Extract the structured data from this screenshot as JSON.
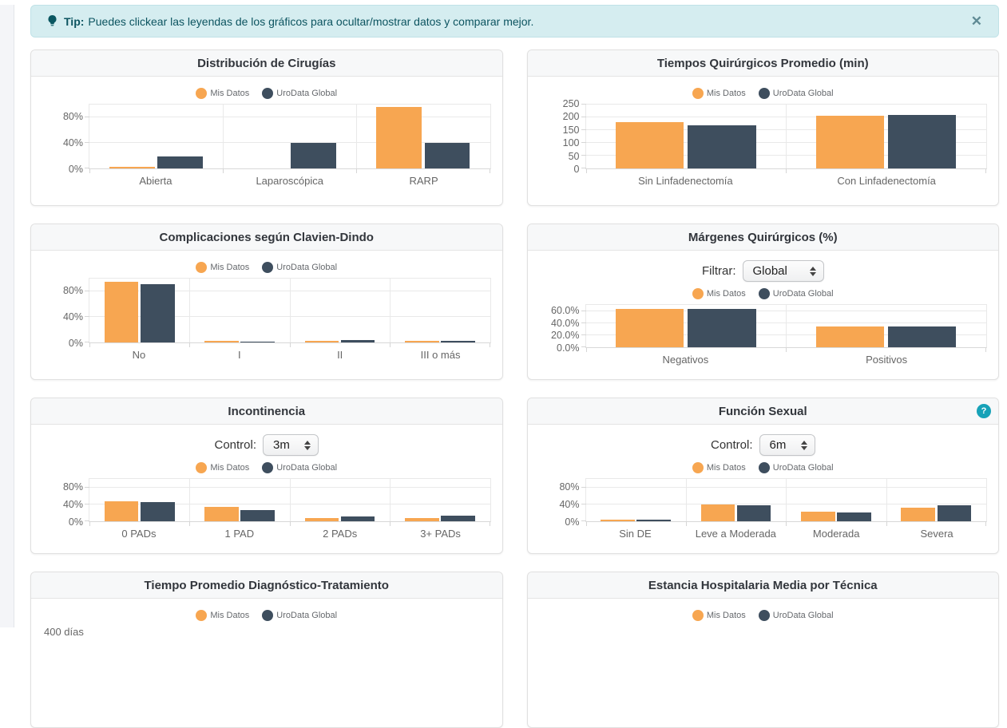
{
  "tip_banner": {
    "icon": "lightbulb-icon",
    "bold_label": "Tip:",
    "text": "Puedes clickear las leyendas de los gráficos para ocultar/mostrar datos y comparar mejor.",
    "close_label": "✕"
  },
  "legend": {
    "series": [
      "Mis Datos",
      "UroData Global"
    ]
  },
  "colors": {
    "mis_datos": "#F7A651",
    "urodata_global": "#3E4E5E",
    "tip_background": "#d5edf0",
    "tip_text": "#0c5460",
    "help_icon": "#17a2b8"
  },
  "panels": [
    {
      "title": "Distribución de Cirugías"
    },
    {
      "title": "Tiempos Quirúrgicos Promedio (min)"
    },
    {
      "title": "Complicaciones según Clavien-Dindo"
    },
    {
      "title": "Márgenes Quirúrgicos (%)",
      "control": {
        "label": "Filtrar:",
        "value": "Global"
      }
    },
    {
      "title": "Incontinencia",
      "control": {
        "label": "Control:",
        "value": "3m"
      }
    },
    {
      "title": "Función Sexual",
      "control": {
        "label": "Control:",
        "value": "6m"
      },
      "help": "?"
    },
    {
      "title": "Tiempo Promedio Diagnóstico-Tratamiento",
      "first_tick": "400 días"
    },
    {
      "title": "Estancia Hospitalaria Media por Técnica"
    }
  ],
  "chart_data": [
    {
      "type": "bar",
      "title": "Distribución de Cirugías",
      "categories": [
        "Abierta",
        "Laparoscópica",
        "RARP"
      ],
      "series": [
        {
          "name": "Mis Datos",
          "values": [
            2,
            0,
            96
          ]
        },
        {
          "name": "UroData Global",
          "values": [
            19,
            40,
            40
          ]
        }
      ],
      "yticks": [
        {
          "value": 0,
          "label": "0%"
        },
        {
          "value": 40,
          "label": "40%"
        },
        {
          "value": 80,
          "label": "80%"
        }
      ],
      "ymax": 100,
      "legend_position": "top",
      "grid": true
    },
    {
      "type": "bar",
      "title": "Tiempos Quirúrgicos Promedio (min)",
      "categories": [
        "Sin Linfadenectomía",
        "Con Linfadenectomía"
      ],
      "series": [
        {
          "name": "Mis Datos",
          "values": [
            180,
            207
          ]
        },
        {
          "name": "UroData Global",
          "values": [
            170,
            208
          ]
        }
      ],
      "yticks": [
        {
          "value": 0,
          "label": "0"
        },
        {
          "value": 50,
          "label": "50"
        },
        {
          "value": 100,
          "label": "100"
        },
        {
          "value": 150,
          "label": "150"
        },
        {
          "value": 200,
          "label": "200"
        },
        {
          "value": 250,
          "label": "250"
        }
      ],
      "ymax": 250,
      "legend_position": "top",
      "grid": true
    },
    {
      "type": "bar",
      "title": "Complicaciones según Clavien-Dindo",
      "categories": [
        "No",
        "I",
        "II",
        "III o más"
      ],
      "series": [
        {
          "name": "Mis Datos",
          "values": [
            95,
            2,
            2,
            2
          ]
        },
        {
          "name": "UroData Global",
          "values": [
            91,
            1.5,
            3.5,
            2.5
          ]
        }
      ],
      "yticks": [
        {
          "value": 0,
          "label": "0%"
        },
        {
          "value": 40,
          "label": "40%"
        },
        {
          "value": 80,
          "label": "80%"
        }
      ],
      "ymax": 100,
      "legend_position": "top",
      "grid": true
    },
    {
      "type": "bar",
      "title": "Márgenes Quirúrgicos (%)",
      "filter_selected": "Global",
      "categories": [
        "Negativos",
        "Positivos"
      ],
      "series": [
        {
          "name": "Mis Datos",
          "values": [
            63,
            35
          ]
        },
        {
          "name": "UroData Global",
          "values": [
            63,
            35
          ]
        }
      ],
      "yticks": [
        {
          "value": 0,
          "label": "0.0%"
        },
        {
          "value": 20,
          "label": "20.0%"
        },
        {
          "value": 40,
          "label": "40.0%"
        },
        {
          "value": 60,
          "label": "60.0%"
        }
      ],
      "ymax": 70,
      "legend_position": "top",
      "grid": true
    },
    {
      "type": "bar",
      "title": "Incontinencia",
      "control_selected": "3m",
      "categories": [
        "0 PADs",
        "1 PAD",
        "2 PADs",
        "3+ PADs"
      ],
      "series": [
        {
          "name": "Mis Datos",
          "values": [
            48,
            34,
            8,
            8
          ]
        },
        {
          "name": "UroData Global",
          "values": [
            46,
            26,
            12,
            13
          ]
        }
      ],
      "yticks": [
        {
          "value": 0,
          "label": "0%"
        },
        {
          "value": 40,
          "label": "40%"
        },
        {
          "value": 80,
          "label": "80%"
        }
      ],
      "ymax": 100,
      "legend_position": "top",
      "grid": true
    },
    {
      "type": "bar",
      "title": "Función Sexual",
      "control_selected": "6m",
      "categories": [
        "Sin DE",
        "Leve a Moderada",
        "Moderada",
        "Severa"
      ],
      "series": [
        {
          "name": "Mis Datos",
          "values": [
            4,
            39,
            23,
            32
          ]
        },
        {
          "name": "UroData Global",
          "values": [
            4,
            38,
            21,
            38
          ]
        }
      ],
      "yticks": [
        {
          "value": 0,
          "label": "0%"
        },
        {
          "value": 40,
          "label": "40%"
        },
        {
          "value": 80,
          "label": "80%"
        }
      ],
      "ymax": 100,
      "legend_position": "top",
      "grid": true
    },
    {
      "type": "bar",
      "title": "Tiempo Promedio Diagnóstico-Tratamiento",
      "visible_ytick": "400 días",
      "legend_position": "top"
    },
    {
      "type": "bar",
      "title": "Estancia Hospitalaria Media por Técnica",
      "legend_position": "top"
    }
  ]
}
